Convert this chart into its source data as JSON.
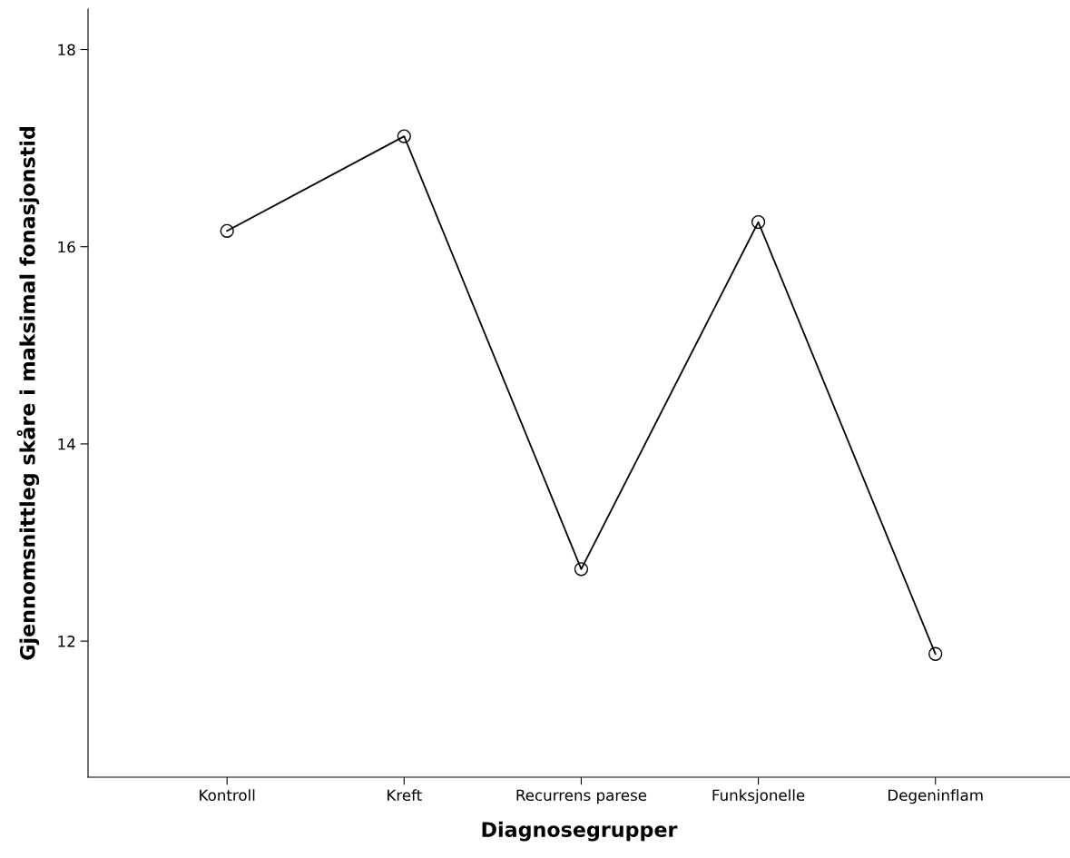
{
  "chart_data": {
    "type": "line",
    "xlabel": "Diagnosegrupper",
    "ylabel": "Gjennomsnittleg skåre i maksimal fonasjonstid",
    "categories": [
      "Kontroll",
      "Kreft",
      "Recurrens parese",
      "Funksjonelle",
      "Degeninflam"
    ],
    "series": [
      {
        "color": "#000000",
        "values": [
          16.16,
          17.12,
          12.73,
          16.25,
          11.87
        ]
      }
    ],
    "ylim": [
      10.62,
      18.41
    ],
    "yticks": [
      12,
      14,
      16,
      18
    ],
    "grid": false,
    "marker": "circle",
    "line_style": "solid"
  }
}
